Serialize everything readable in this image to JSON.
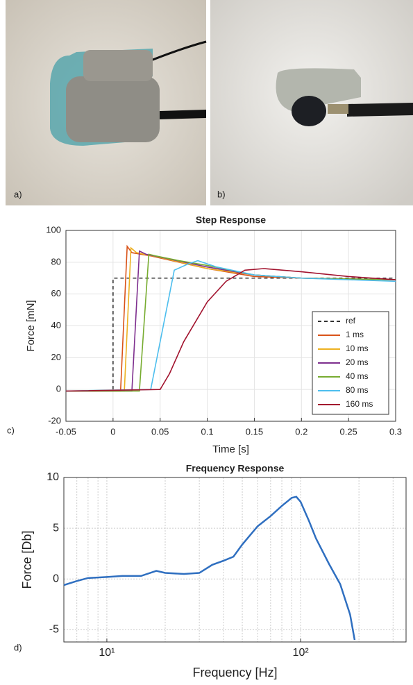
{
  "panel_labels": [
    "a)",
    "b)",
    "c)",
    "d)"
  ],
  "chart_data": [
    {
      "type": "line",
      "title": "Step Response",
      "x_label": "Time [s]",
      "y_label": "Force [mN]",
      "xlim": [
        -0.05,
        0.3
      ],
      "ylim": [
        -20,
        100
      ],
      "xticks": [
        -0.05,
        0,
        0.05,
        0.1,
        0.15,
        0.2,
        0.25,
        0.3
      ],
      "yticks": [
        -20,
        0,
        20,
        40,
        60,
        80,
        100
      ],
      "grid": true,
      "legend": "lower right",
      "series": [
        {
          "name": "ref",
          "color": "#333333",
          "dashed": true,
          "x": [
            0,
            0,
            0.3
          ],
          "values": [
            0,
            70,
            70
          ]
        },
        {
          "name": "1 ms",
          "color": "#d95319",
          "x": [
            -0.05,
            0.008,
            0.015,
            0.02,
            0.04,
            0.07,
            0.1,
            0.15,
            0.2,
            0.3
          ],
          "values": [
            -1,
            -1,
            90,
            86,
            84,
            80,
            76,
            71,
            70,
            69
          ]
        },
        {
          "name": "10 ms",
          "color": "#edb120",
          "x": [
            -0.05,
            0.012,
            0.019,
            0.025,
            0.05,
            0.1,
            0.15,
            0.2,
            0.3
          ],
          "values": [
            -1,
            -1,
            89,
            86,
            83,
            76,
            72,
            70,
            69
          ]
        },
        {
          "name": "20 ms",
          "color": "#7e2f8e",
          "x": [
            -0.05,
            0.02,
            0.028,
            0.035,
            0.06,
            0.1,
            0.15,
            0.2,
            0.3
          ],
          "values": [
            -1,
            -1,
            87,
            85,
            82,
            77,
            72,
            70,
            69
          ]
        },
        {
          "name": "40 ms",
          "color": "#77ac30",
          "x": [
            -0.05,
            0.028,
            0.038,
            0.045,
            0.07,
            0.1,
            0.15,
            0.2,
            0.3
          ],
          "values": [
            -1,
            -1,
            85,
            84,
            81,
            78,
            72,
            70,
            69
          ]
        },
        {
          "name": "80 ms",
          "color": "#4dbeee",
          "x": [
            -0.05,
            0.04,
            0.05,
            0.065,
            0.08,
            0.09,
            0.11,
            0.15,
            0.2,
            0.3
          ],
          "values": [
            -1,
            0,
            30,
            75,
            79,
            81,
            77,
            72,
            70,
            68
          ]
        },
        {
          "name": "160 ms",
          "color": "#a2142f",
          "x": [
            -0.05,
            0.05,
            0.06,
            0.075,
            0.1,
            0.12,
            0.14,
            0.16,
            0.2,
            0.25,
            0.3
          ],
          "values": [
            -1,
            0,
            10,
            30,
            55,
            68,
            75,
            76,
            74,
            71,
            69
          ]
        }
      ]
    },
    {
      "type": "line",
      "title": "Frequency Response",
      "x_label": "Frequency [Hz]",
      "y_label": "Force [Db]",
      "xscale": "log",
      "xlim": [
        6,
        350
      ],
      "ylim": [
        -6.2,
        10
      ],
      "xticks": [
        {
          "value": 10,
          "label": "10¹"
        },
        {
          "value": 100,
          "label": "10²"
        }
      ],
      "xminor": [
        7,
        8,
        9,
        20,
        30,
        40,
        50,
        60,
        70,
        80,
        90,
        200,
        300
      ],
      "yticks": [
        -5,
        0,
        5,
        10
      ],
      "grid": true,
      "series": [
        {
          "color": "#2f6fc0",
          "x": [
            6,
            7,
            8,
            10,
            12,
            15,
            18,
            20,
            25,
            30,
            35,
            40,
            45,
            50,
            60,
            70,
            80,
            90,
            95,
            100,
            110,
            120,
            140,
            160,
            180,
            190
          ],
          "values": [
            -0.6,
            -0.2,
            0.1,
            0.2,
            0.3,
            0.3,
            0.8,
            0.6,
            0.5,
            0.6,
            1.4,
            1.8,
            2.2,
            3.4,
            5.2,
            6.2,
            7.2,
            8.0,
            8.1,
            7.6,
            5.8,
            4.0,
            1.5,
            -0.5,
            -3.5,
            -6
          ]
        }
      ]
    }
  ]
}
